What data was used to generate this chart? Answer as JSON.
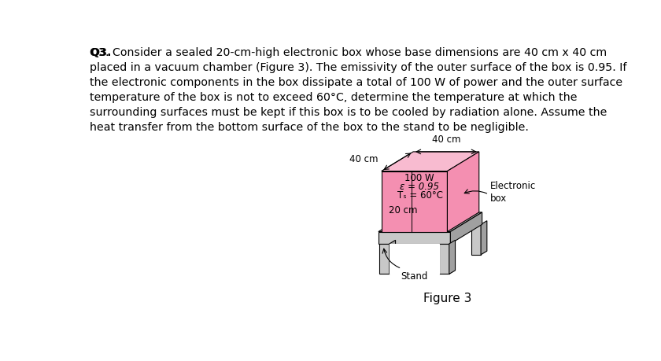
{
  "bg": "#ffffff",
  "question_bold": "Q3.",
  "question_rest": " Consider a sealed 20-cm-high electronic box whose base dimensions are 40 cm x 40 cm\nplaced in a vacuum chamber (Figure 3). The emissivity of the outer surface of the box is 0.95. If\nthe electronic components in the box dissipate a total of 100 W of power and the outer surface\ntemperature of the box is not to exceed 60°C, determine the temperature at which the\nsurrounding surfaces must be kept if this box is to be cooled by radiation alone. Assume the\nheat transfer from the bottom surface of the box to the stand to be negligible.",
  "box_front": "#f48fb1",
  "box_top": "#f8bbd0",
  "box_right": "#f06292",
  "stand_light": "#c8c8c8",
  "stand_mid": "#b0b0b0",
  "stand_dark": "#a0a0a0",
  "lbl_100W": "100 W",
  "lbl_eps": "ε = 0.95",
  "lbl_Ts": "Tₛ = 60°C",
  "lbl_20cm": "20 cm",
  "lbl_40L": "40 cm",
  "lbl_40T": "40 cm",
  "lbl_ebox": "Electronic\nbox",
  "lbl_stand": "Stand",
  "lbl_fig": "Figure 3",
  "fig_fontsize": 11
}
